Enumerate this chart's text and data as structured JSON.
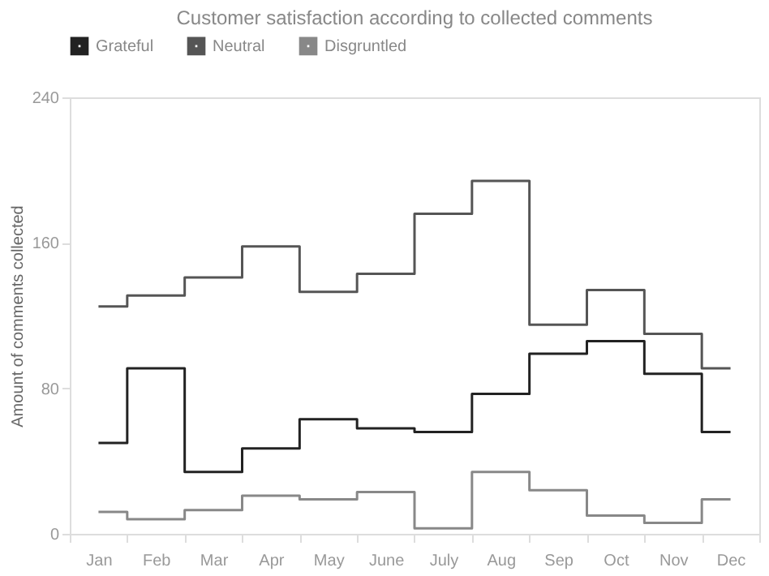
{
  "chart_data": {
    "type": "step",
    "title": "Customer satisfaction according to collected comments",
    "ylabel": "Amount of comments collected",
    "categories": [
      "Jan",
      "Feb",
      "Mar",
      "Apr",
      "May",
      "June",
      "July",
      "Aug",
      "Sep",
      "Oct",
      "Nov",
      "Dec"
    ],
    "series": [
      {
        "name": "Grateful",
        "color": "#222222",
        "values": [
          50,
          91,
          34,
          47,
          63,
          58,
          56,
          77,
          99,
          106,
          88,
          56
        ]
      },
      {
        "name": "Neutral",
        "color": "#555555",
        "values": [
          125,
          131,
          141,
          158,
          133,
          143,
          176,
          194,
          115,
          134,
          110,
          91
        ]
      },
      {
        "name": "Disgruntled",
        "color": "#888888",
        "values": [
          12,
          8,
          13,
          21,
          19,
          23,
          3,
          34,
          24,
          10,
          6,
          19
        ]
      }
    ],
    "ylim": [
      0,
      240
    ],
    "yticks": [
      0,
      80,
      160,
      240
    ],
    "grid": false,
    "legend": "top"
  }
}
